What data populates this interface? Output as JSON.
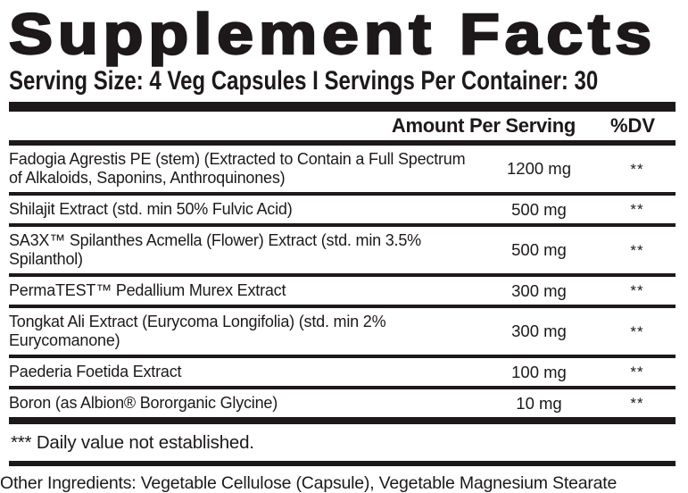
{
  "title": "Supplement Facts",
  "serving_line": "Serving Size: 4 Veg Capsules I Servings Per Container: 30",
  "table": {
    "amount_header": "Amount Per Serving",
    "dv_header": "%DV",
    "rows": [
      {
        "name": "Fadogia Agrestis PE (stem) (Extracted to Contain a Full Spectrum of Alkaloids, Saponins, Anthroquinones)",
        "amount": "1200 mg",
        "dv": "**"
      },
      {
        "name": "Shilajit Extract (std. min 50% Fulvic Acid)",
        "amount": "500 mg",
        "dv": "**"
      },
      {
        "name": "SA3X™ Spilanthes Acmella (Flower) Extract (std. min 3.5% Spilanthol)",
        "amount": "500 mg",
        "dv": "**"
      },
      {
        "name": "PermaTEST™ Pedallium Murex Extract",
        "amount": "300 mg",
        "dv": "**"
      },
      {
        "name": "Tongkat Ali Extract (Eurycoma Longifolia) (std. min 2% Eurycomanone)",
        "amount": "300 mg",
        "dv": "**"
      },
      {
        "name": "Paederia Foetida Extract",
        "amount": "100 mg",
        "dv": "**"
      },
      {
        "name": "Boron (as Albion® Bororganic Glycine)",
        "amount": "10 mg",
        "dv": "**"
      }
    ]
  },
  "footnote": "*** Daily value not established.",
  "other_ingredients": "Other Ingredients: Vegetable Cellulose (Capsule), Vegetable Magnesium Stearate",
  "colors": {
    "ink": "#1d191a",
    "background": "#ffffff"
  }
}
